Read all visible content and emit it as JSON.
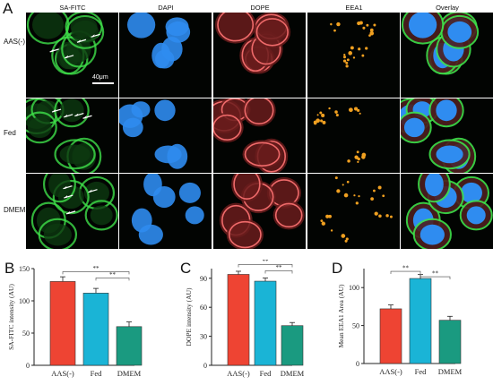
{
  "figure": {
    "panel_letters": [
      "A",
      "B",
      "C",
      "D"
    ],
    "columns": [
      "SA-FITC",
      "DAPI",
      "DOPE",
      "EEA1",
      "Overlay"
    ],
    "rows": [
      "AAS(-)",
      "Fed",
      "DMEM"
    ],
    "scale_bar_label": "40μm",
    "colors": {
      "aas": "#ee4433",
      "fed": "#1ab4d6",
      "dmem": "#1a9a80",
      "green_channel": "#3ee04a",
      "blue_channel": "#2f8cf0",
      "red_channel": "#ef6a6a",
      "orange_channel": "#f0a020"
    }
  },
  "chart_data": [
    {
      "type": "bar",
      "panel": "B",
      "categories": [
        "AAS(-)",
        "Fed",
        "DMEM"
      ],
      "values": [
        130,
        112,
        60
      ],
      "ylabel": "SA-FITC intensity (AU)",
      "ylim": [
        0,
        150
      ],
      "yticks": [
        "0",
        "50",
        "100",
        "150"
      ],
      "significance": [
        "**",
        "**"
      ]
    },
    {
      "type": "bar",
      "panel": "C",
      "categories": [
        "AAS(-)",
        "Fed",
        "DMEM"
      ],
      "values": [
        94,
        87,
        41
      ],
      "ylabel": "DOPE intensity (AU)",
      "ylim": [
        0,
        100
      ],
      "yticks": [
        "0",
        "30",
        "60",
        "90"
      ],
      "significance": [
        "**",
        "**"
      ]
    },
    {
      "type": "bar",
      "panel": "D",
      "categories": [
        "AAS(-)",
        "Fed",
        "DMEM"
      ],
      "values": [
        72,
        112,
        57
      ],
      "ylabel": "Mean EEA1 Area (AU)",
      "ylim": [
        0,
        125
      ],
      "yticks": [
        "0",
        "50",
        "100"
      ],
      "significance": [
        "**",
        "**"
      ]
    }
  ]
}
